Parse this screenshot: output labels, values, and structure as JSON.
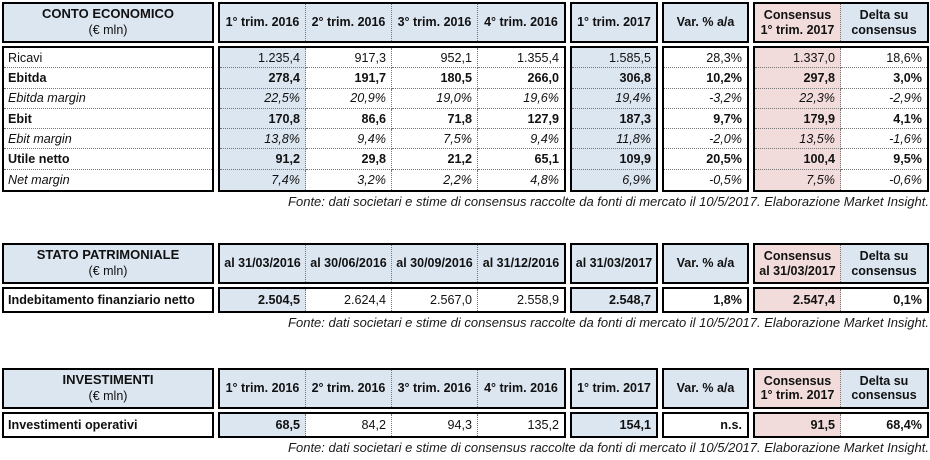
{
  "colors": {
    "blue": "#dce6f1",
    "pink": "#f2dcdb"
  },
  "source_note": "Fonte: dati societari e stime di consensus raccolte da fonti di mercato il 10/5/2017. Elaborazione Market Insight.",
  "tables": [
    {
      "name": "conto-economico",
      "title": "CONTO ECONOMICO",
      "unit": "(€ mln)",
      "column_groups": [
        {
          "name": "trimestri-2016",
          "columns": [
            {
              "label": "1° trim. 2016",
              "highlight": "blue"
            },
            {
              "label": "2° trim. 2016"
            },
            {
              "label": "3° trim. 2016"
            },
            {
              "label": "4° trim. 2016"
            }
          ]
        },
        {
          "name": "trimestre-2017",
          "columns": [
            {
              "label": "1° trim. 2017",
              "highlight": "blue"
            }
          ]
        },
        {
          "name": "variazione",
          "columns": [
            {
              "label": "Var. % a/a"
            }
          ]
        },
        {
          "name": "consensus",
          "columns": [
            {
              "label": "Consensus|1° trim. 2017",
              "highlight": "pink"
            },
            {
              "label": "Delta su|consensus"
            }
          ]
        }
      ],
      "rows": [
        {
          "label": "Ricavi",
          "emphasis": "normal",
          "values": [
            "1.235,4",
            "917,3",
            "952,1",
            "1.355,4",
            "1.585,5",
            "28,3%",
            "1.337,0",
            "18,6%"
          ]
        },
        {
          "label": "Ebitda",
          "emphasis": "bold",
          "values": [
            "278,4",
            "191,7",
            "180,5",
            "266,0",
            "306,8",
            "10,2%",
            "297,8",
            "3,0%"
          ]
        },
        {
          "label": "Ebitda margin",
          "emphasis": "italic",
          "values": [
            "22,5%",
            "20,9%",
            "19,0%",
            "19,6%",
            "19,4%",
            "-3,2%",
            "22,3%",
            "-2,9%"
          ]
        },
        {
          "label": "Ebit",
          "emphasis": "bold",
          "values": [
            "170,8",
            "86,6",
            "71,8",
            "127,9",
            "187,3",
            "9,7%",
            "179,9",
            "4,1%"
          ]
        },
        {
          "label": "Ebit margin",
          "emphasis": "italic",
          "values": [
            "13,8%",
            "9,4%",
            "7,5%",
            "9,4%",
            "11,8%",
            "-2,0%",
            "13,5%",
            "-1,6%"
          ]
        },
        {
          "label": "Utile netto",
          "emphasis": "bold",
          "values": [
            "91,2",
            "29,8",
            "21,2",
            "65,1",
            "109,9",
            "20,5%",
            "100,4",
            "9,5%"
          ]
        },
        {
          "label": "Net margin",
          "emphasis": "italic",
          "values": [
            "7,4%",
            "3,2%",
            "2,2%",
            "4,8%",
            "6,9%",
            "-0,5%",
            "7,5%",
            "-0,6%"
          ]
        }
      ],
      "bold_value_columns": []
    },
    {
      "name": "stato-patrimoniale",
      "title": "STATO PATRIMONIALE",
      "unit": "(€ mln)",
      "column_groups": [
        {
          "name": "date-2016",
          "columns": [
            {
              "label": "al 31/03/2016",
              "highlight": "blue"
            },
            {
              "label": "al 30/06/2016"
            },
            {
              "label": "al 30/09/2016"
            },
            {
              "label": "al 31/12/2016"
            }
          ]
        },
        {
          "name": "data-2017",
          "columns": [
            {
              "label": "al 31/03/2017",
              "highlight": "blue"
            }
          ]
        },
        {
          "name": "variazione",
          "columns": [
            {
              "label": "Var. % a/a"
            }
          ]
        },
        {
          "name": "consensus",
          "columns": [
            {
              "label": "Consensus|al 31/03/2017",
              "highlight": "pink"
            },
            {
              "label": "Delta su|consensus"
            }
          ]
        }
      ],
      "rows": [
        {
          "label": "Indebitamento finanziario netto",
          "emphasis": "mixed",
          "values": [
            "2.504,5",
            "2.624,4",
            "2.567,0",
            "2.558,9",
            "2.548,7",
            "1,8%",
            "2.547,4",
            "0,1%"
          ]
        }
      ],
      "bold_value_columns": [
        0,
        4,
        5,
        6,
        7
      ]
    },
    {
      "name": "investimenti",
      "title": "INVESTIMENTI",
      "unit": "(€ mln)",
      "column_groups": [
        {
          "name": "trimestri-2016",
          "columns": [
            {
              "label": "1° trim. 2016",
              "highlight": "blue"
            },
            {
              "label": "2° trim. 2016"
            },
            {
              "label": "3° trim. 2016"
            },
            {
              "label": "4° trim. 2016"
            }
          ]
        },
        {
          "name": "trimestre-2017",
          "columns": [
            {
              "label": "1° trim. 2017",
              "highlight": "blue"
            }
          ]
        },
        {
          "name": "variazione",
          "columns": [
            {
              "label": "Var. % a/a"
            }
          ]
        },
        {
          "name": "consensus",
          "columns": [
            {
              "label": "Consensus|1° trim. 2017",
              "highlight": "pink"
            },
            {
              "label": "Delta su|consensus"
            }
          ]
        }
      ],
      "rows": [
        {
          "label": "Investimenti operativi",
          "emphasis": "mixed",
          "values": [
            "68,5",
            "84,2",
            "94,3",
            "135,2",
            "154,1",
            "n.s.",
            "91,5",
            "68,4%"
          ]
        }
      ],
      "bold_value_columns": [
        0,
        4,
        5,
        6,
        7
      ]
    }
  ]
}
